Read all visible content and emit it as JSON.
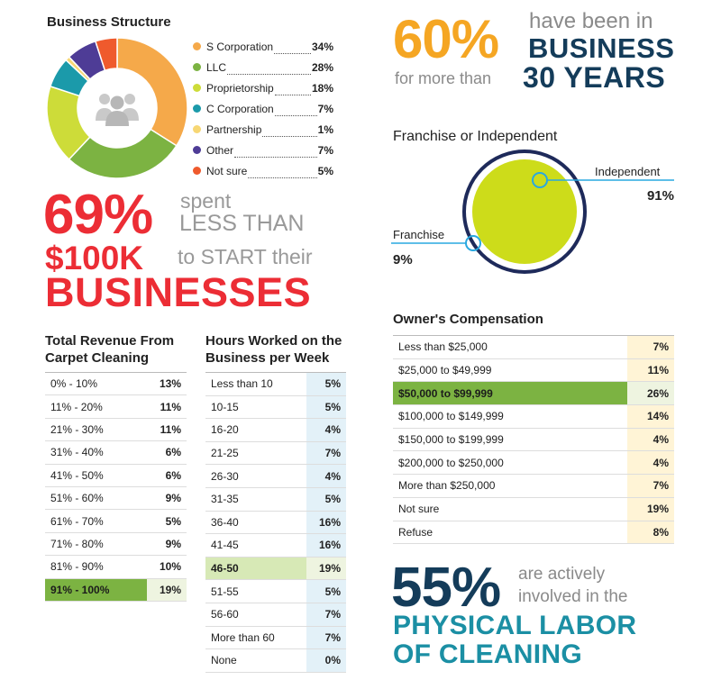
{
  "structure": {
    "title": "Business Structure",
    "legend": [
      {
        "label": "S Corporation",
        "value": "34%",
        "color": "#f5a94a"
      },
      {
        "label": "LLC",
        "value": "28%",
        "color": "#7cb342"
      },
      {
        "label": "Proprietorship",
        "value": "18%",
        "color": "#cddc39"
      },
      {
        "label": "C Corporation",
        "value": "7%",
        "color": "#1b9aaa"
      },
      {
        "label": "Partnership",
        "value": "1%",
        "color": "#f7d774"
      },
      {
        "label": "Other",
        "value": "7%",
        "color": "#4e3c96"
      },
      {
        "label": "Not sure",
        "value": "5%",
        "color": "#ef5a2d"
      }
    ]
  },
  "stat60": {
    "pct": "60%",
    "line1": "have been in",
    "line2": "BUSINESS",
    "line3": "for more than",
    "line4": "30 YEARS"
  },
  "franchise": {
    "title": "Franchise or Independent",
    "independent_label": "Independent",
    "independent_value": "91%",
    "franchise_label": "Franchise",
    "franchise_value": "9%",
    "colors": {
      "inner": "#cddc1a",
      "ring": "#1e2a5a",
      "line": "#29a8e0"
    }
  },
  "stat69": {
    "pct": "69%",
    "line1": "spent",
    "line2": "LESS THAN",
    "line3": "$100K",
    "line4": "to START their",
    "line5": "BUSINESSES"
  },
  "revenue": {
    "title1": "Total Revenue From",
    "title2": "Carpet Cleaning",
    "rows": [
      {
        "label": "0% - 10%",
        "value": "13%"
      },
      {
        "label": "11% - 20%",
        "value": "11%"
      },
      {
        "label": "21% - 30%",
        "value": "11%"
      },
      {
        "label": "31% - 40%",
        "value": "6%"
      },
      {
        "label": "41% - 50%",
        "value": "6%"
      },
      {
        "label": "51% - 60%",
        "value": "9%"
      },
      {
        "label": "61% - 70%",
        "value": "5%"
      },
      {
        "label": "71% - 80%",
        "value": "9%"
      },
      {
        "label": "81% - 90%",
        "value": "10%"
      },
      {
        "label": "91% - 100%",
        "value": "19%",
        "highlight": true
      }
    ]
  },
  "hours": {
    "title1": "Hours Worked on the",
    "title2": "Business per Week",
    "rows": [
      {
        "label": "Less than 10",
        "value": "5%"
      },
      {
        "label": "10-15",
        "value": "5%"
      },
      {
        "label": "16-20",
        "value": "4%"
      },
      {
        "label": "21-25",
        "value": "7%"
      },
      {
        "label": "26-30",
        "value": "4%"
      },
      {
        "label": "31-35",
        "value": "5%"
      },
      {
        "label": "36-40",
        "value": "16%"
      },
      {
        "label": "41-45",
        "value": "16%"
      },
      {
        "label": "46-50",
        "value": "19%",
        "highlight": true
      },
      {
        "label": "51-55",
        "value": "5%"
      },
      {
        "label": "56-60",
        "value": "7%"
      },
      {
        "label": "More than 60",
        "value": "7%"
      },
      {
        "label": "None",
        "value": "0%"
      }
    ]
  },
  "compensation": {
    "title": "Owner's Compensation",
    "rows": [
      {
        "label": "Less than $25,000",
        "value": "7%"
      },
      {
        "label": "$25,000 to $49,999",
        "value": "11%"
      },
      {
        "label": "$50,000 to $99,999",
        "value": "26%",
        "highlight": true
      },
      {
        "label": "$100,000 to $149,999",
        "value": "14%"
      },
      {
        "label": "$150,000 to $199,999",
        "value": "4%"
      },
      {
        "label": "$200,000 to $250,000",
        "value": "4%"
      },
      {
        "label": "More than $250,000",
        "value": "7%"
      },
      {
        "label": "Not sure",
        "value": "19%"
      },
      {
        "label": "Refuse",
        "value": "8%"
      }
    ]
  },
  "stat55": {
    "pct": "55%",
    "line1": "are actively",
    "line2": "involved in the",
    "line3": "PHYSICAL LABOR",
    "line4": "OF CLEANING"
  },
  "chart_data": [
    {
      "type": "pie",
      "title": "Business Structure",
      "categories": [
        "S Corporation",
        "LLC",
        "Proprietorship",
        "C Corporation",
        "Partnership",
        "Other",
        "Not sure"
      ],
      "values": [
        34,
        28,
        18,
        7,
        1,
        7,
        5
      ]
    },
    {
      "type": "pie",
      "title": "Franchise or Independent",
      "categories": [
        "Independent",
        "Franchise"
      ],
      "values": [
        91,
        9
      ]
    },
    {
      "type": "table",
      "title": "Total Revenue From Carpet Cleaning",
      "categories": [
        "0% - 10%",
        "11% - 20%",
        "21% - 30%",
        "31% - 40%",
        "41% - 50%",
        "51% - 60%",
        "61% - 70%",
        "71% - 80%",
        "81% - 90%",
        "91% - 100%"
      ],
      "values": [
        13,
        11,
        11,
        6,
        6,
        9,
        5,
        9,
        10,
        19
      ]
    },
    {
      "type": "table",
      "title": "Hours Worked on the Business per Week",
      "categories": [
        "Less than 10",
        "10-15",
        "16-20",
        "21-25",
        "26-30",
        "31-35",
        "36-40",
        "41-45",
        "46-50",
        "51-55",
        "56-60",
        "More than 60",
        "None"
      ],
      "values": [
        5,
        5,
        4,
        7,
        4,
        5,
        16,
        16,
        19,
        5,
        7,
        7,
        0
      ]
    },
    {
      "type": "table",
      "title": "Owner's Compensation",
      "categories": [
        "Less than $25,000",
        "$25,000 to $49,999",
        "$50,000 to $99,999",
        "$100,000 to $149,999",
        "$150,000 to $199,999",
        "$200,000 to $250,000",
        "More than $250,000",
        "Not sure",
        "Refuse"
      ],
      "values": [
        7,
        11,
        26,
        14,
        4,
        4,
        7,
        19,
        8
      ]
    }
  ]
}
